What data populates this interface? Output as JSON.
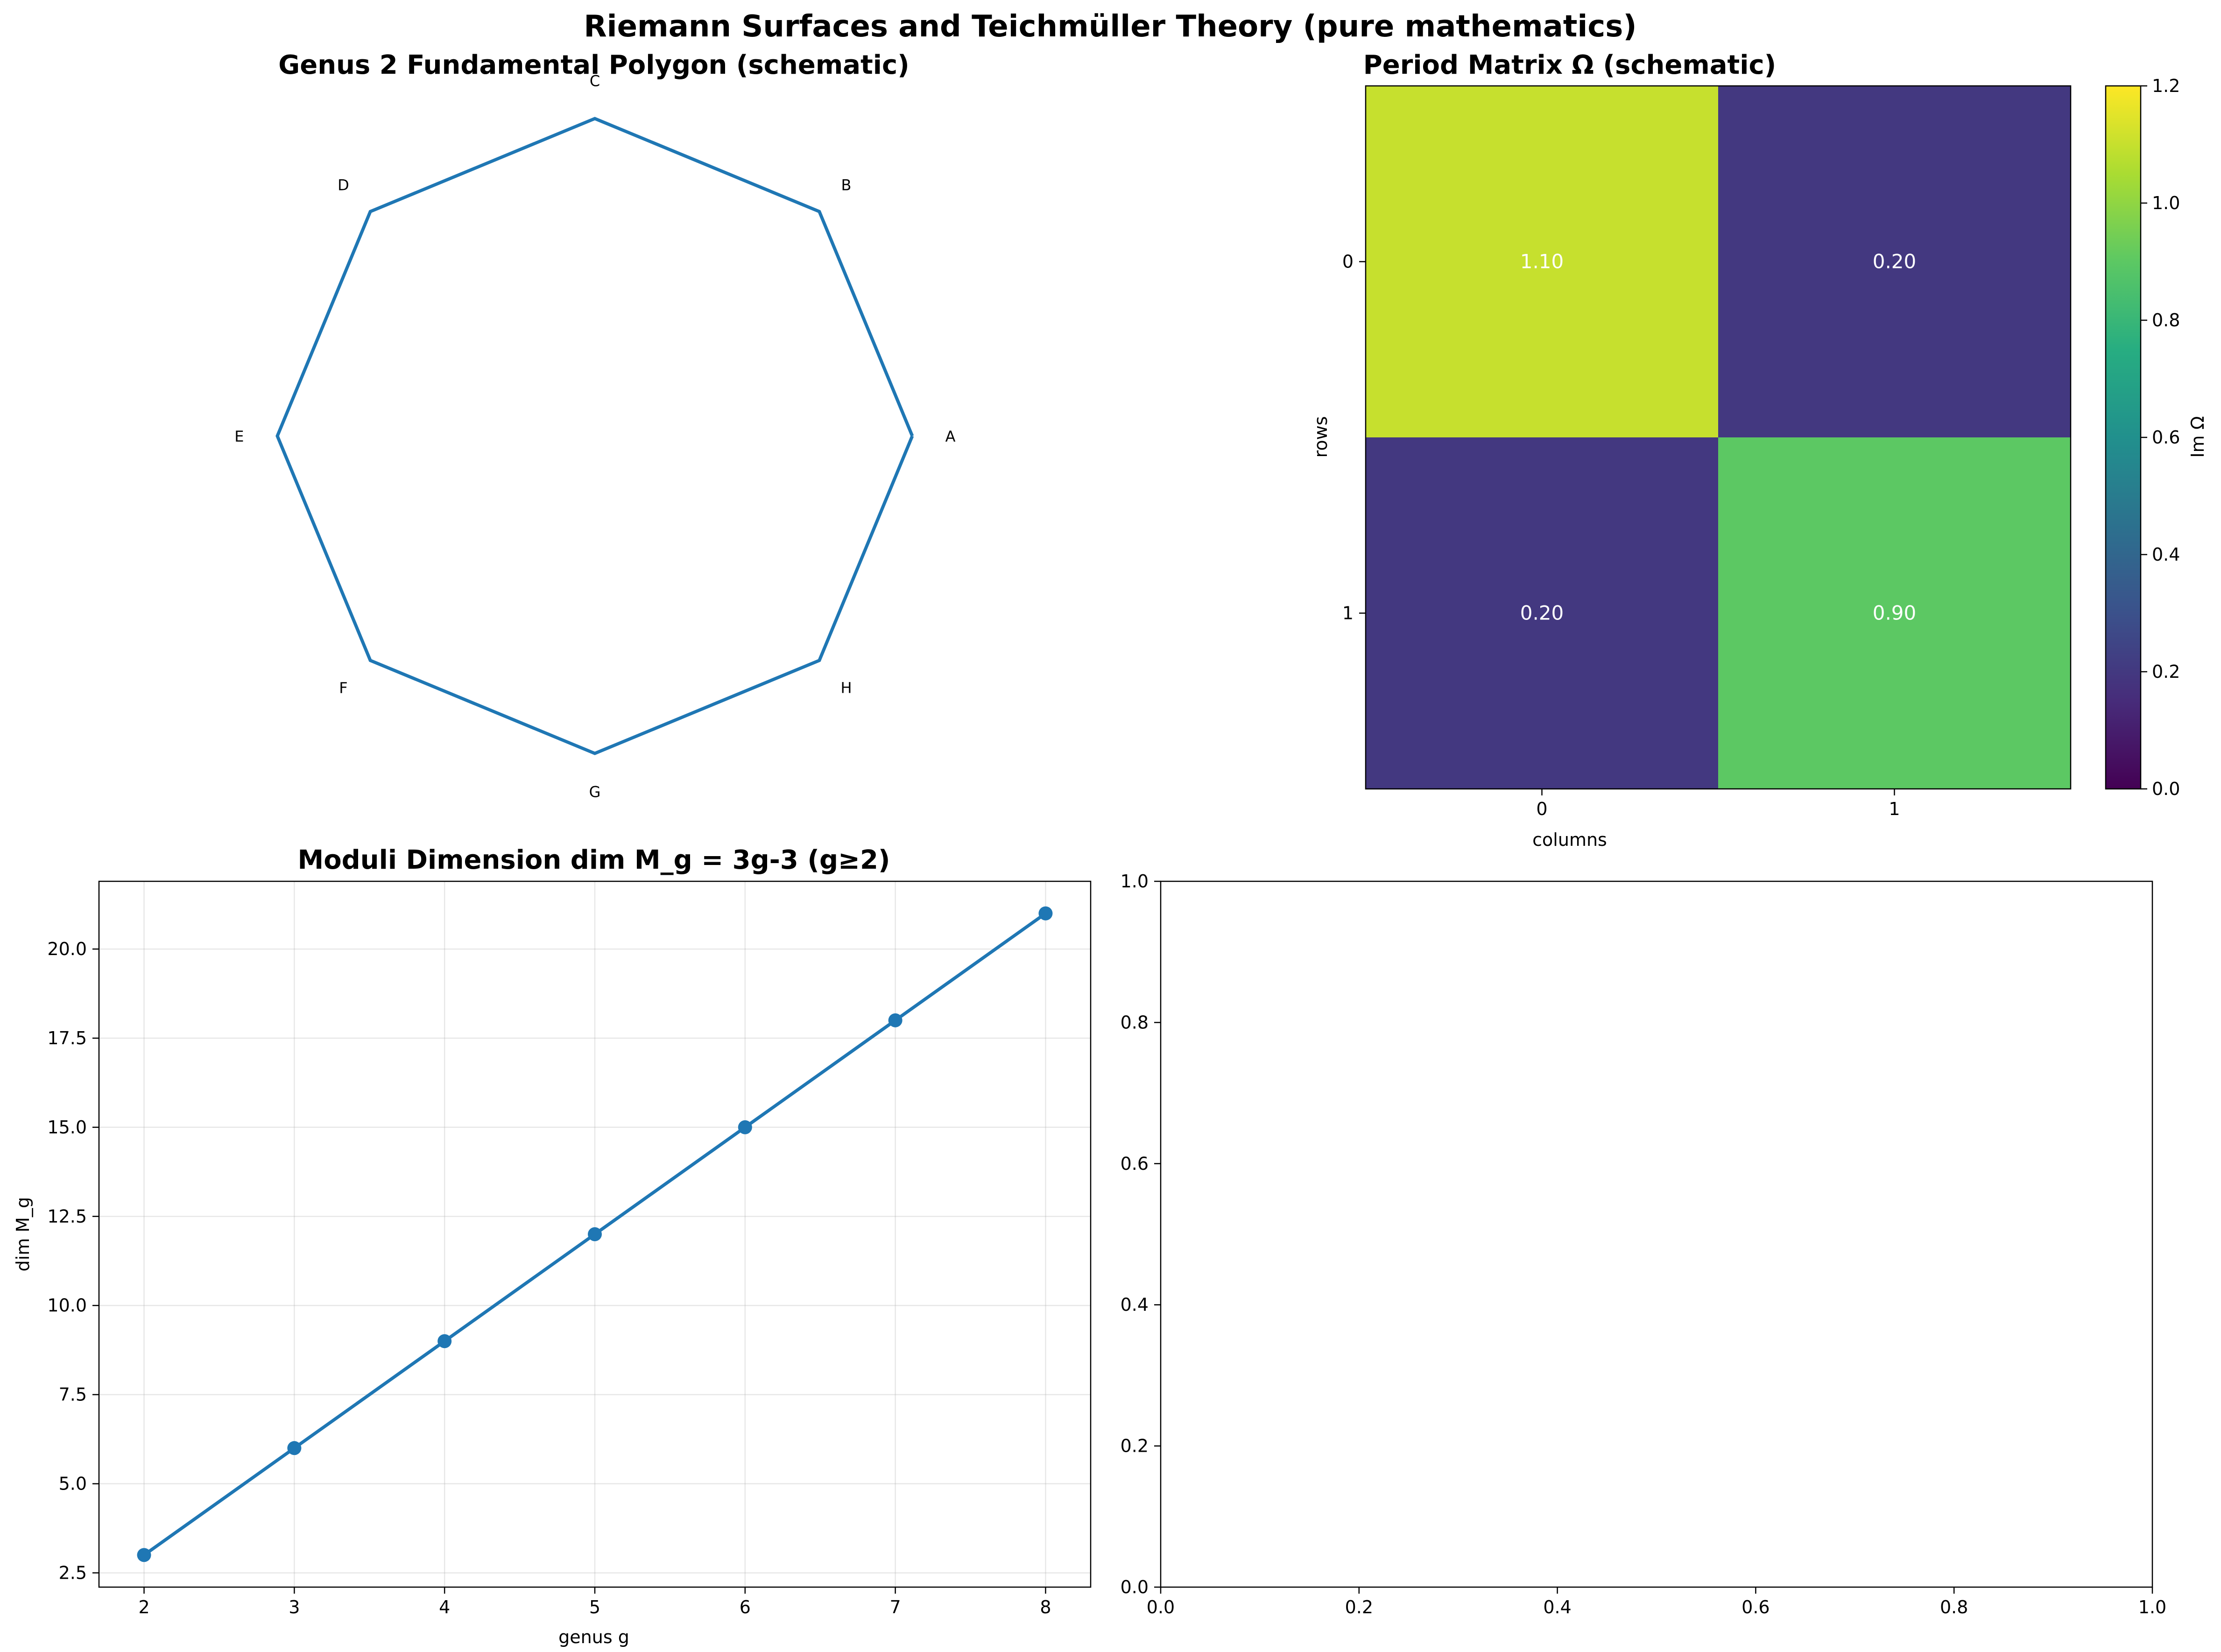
{
  "figure": {
    "title": "Riemann Surfaces and Teichmüller Theory (pure mathematics)"
  },
  "chart_data": [
    {
      "type": "line",
      "subtype": "polygon",
      "title": "Genus 2 Fundamental Polygon (schematic)",
      "vertices": [
        {
          "label": "A",
          "x": 1.0,
          "y": 0.0
        },
        {
          "label": "B",
          "x": 0.7071,
          "y": 0.7071
        },
        {
          "label": "C",
          "x": 0.0,
          "y": 1.0
        },
        {
          "label": "D",
          "x": -0.7071,
          "y": 0.7071
        },
        {
          "label": "E",
          "x": -1.0,
          "y": 0.0
        },
        {
          "label": "F",
          "x": -0.7071,
          "y": -0.7071
        },
        {
          "label": "G",
          "x": 0.0,
          "y": -1.0
        },
        {
          "label": "H",
          "x": 0.7071,
          "y": -0.7071
        }
      ],
      "axes_visible": false,
      "color": "#1f77b4"
    },
    {
      "type": "heatmap",
      "title": "Period Matrix Ω (schematic)",
      "xlabel": "columns",
      "ylabel": "rows",
      "x_ticks": [
        "0",
        "1"
      ],
      "y_ticks": [
        "0",
        "1"
      ],
      "values": [
        [
          1.1,
          0.2
        ],
        [
          0.2,
          0.9
        ]
      ],
      "value_labels": [
        [
          "1.10",
          "0.20"
        ],
        [
          "0.20",
          "0.90"
        ]
      ],
      "colormap": "viridis",
      "vmin": 0.0,
      "vmax": 1.2,
      "colorbar_label": "Im Ω",
      "colorbar_ticks": [
        "0.0",
        "0.2",
        "0.4",
        "0.6",
        "0.8",
        "1.0",
        "1.2"
      ]
    },
    {
      "type": "line",
      "title": "Moduli Dimension dim M_g = 3g-3 (g≥2)",
      "xlabel": "genus g",
      "ylabel": "dim M_g",
      "x": [
        2,
        3,
        4,
        5,
        6,
        7,
        8
      ],
      "y": [
        3,
        6,
        9,
        12,
        15,
        18,
        21
      ],
      "xlim": [
        1.7,
        8.3
      ],
      "ylim": [
        2.1,
        21.9
      ],
      "x_ticks": [
        "2",
        "3",
        "4",
        "5",
        "6",
        "7",
        "8"
      ],
      "y_ticks": [
        "2.5",
        "5.0",
        "7.5",
        "10.0",
        "12.5",
        "15.0",
        "17.5",
        "20.0"
      ],
      "grid": true,
      "marker": "circle",
      "color": "#1f77b4"
    },
    {
      "type": "line",
      "title": "",
      "empty": true,
      "xlim": [
        0.0,
        1.0
      ],
      "ylim": [
        0.0,
        1.0
      ],
      "x_ticks": [
        "0.0",
        "0.2",
        "0.4",
        "0.6",
        "0.8",
        "1.0"
      ],
      "y_ticks": [
        "0.0",
        "0.2",
        "0.4",
        "0.6",
        "0.8",
        "1.0"
      ]
    }
  ]
}
